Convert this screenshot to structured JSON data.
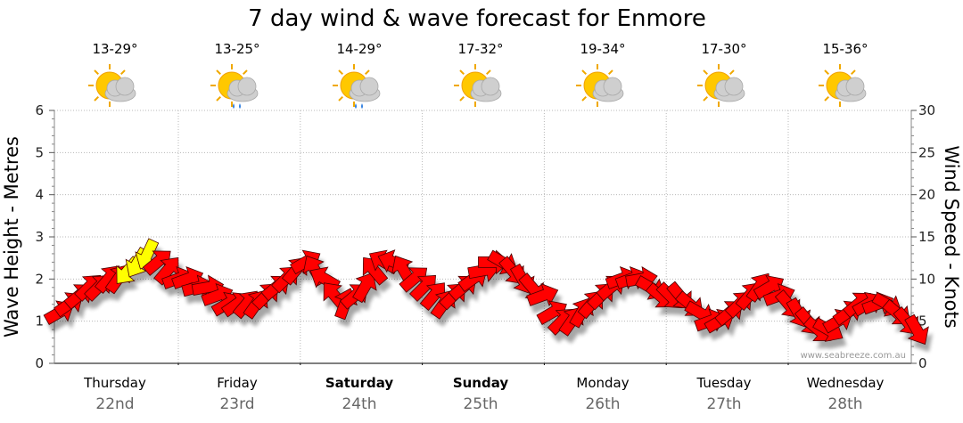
{
  "chart_data": {
    "type": "line",
    "title": "7 day wind & wave forecast for Enmore",
    "ylabel_left": "Wave Height - Metres",
    "ylabel_right": "Wind Speed - Knots",
    "ylim_left": [
      0,
      6
    ],
    "ylim_right": [
      0,
      30
    ],
    "yticks_left": [
      "0",
      "1",
      "2",
      "3",
      "4",
      "5",
      "6"
    ],
    "yticks_right": [
      "0",
      "5",
      "10",
      "15",
      "20",
      "25",
      "30"
    ],
    "credit": "www.seabreeze.com.au",
    "days": [
      {
        "name": "Thursday",
        "date": "22nd",
        "temp": "13-29°",
        "icon": "sun-cloud-icon",
        "bold": false
      },
      {
        "name": "Friday",
        "date": "23rd",
        "temp": "13-25°",
        "icon": "sun-cloud-rain-icon",
        "bold": false
      },
      {
        "name": "Saturday",
        "date": "24th",
        "temp": "14-29°",
        "icon": "sun-cloud-rain-icon",
        "bold": true
      },
      {
        "name": "Sunday",
        "date": "25th",
        "temp": "17-32°",
        "icon": "sun-cloud-icon",
        "bold": true
      },
      {
        "name": "Monday",
        "date": "26th",
        "temp": "19-34°",
        "icon": "sun-cloud-icon",
        "bold": false
      },
      {
        "name": "Tuesday",
        "date": "27th",
        "temp": "17-30°",
        "icon": "sun-cloud-icon",
        "bold": false
      },
      {
        "name": "Wednesday",
        "date": "28th",
        "temp": "15-36°",
        "icon": "sun-cloud-icon",
        "bold": false
      }
    ],
    "wind_series": {
      "name": "Wind speed (knots) with direction, per 3 hours",
      "color": "#ff0000",
      "highlight_color": "#ffff00",
      "speed": [
        6,
        7,
        8,
        9,
        9,
        10,
        10,
        11,
        12,
        13,
        12,
        11,
        10,
        10,
        9,
        9,
        8,
        7,
        7,
        7,
        7,
        8,
        9,
        10,
        11,
        12,
        11,
        10,
        8,
        7,
        8,
        9,
        11,
        12,
        12,
        11,
        10,
        9,
        8,
        7,
        8,
        9,
        10,
        11,
        12,
        12,
        11,
        10,
        9,
        8,
        6,
        5,
        5,
        6,
        7,
        8,
        9,
        10,
        10,
        10,
        9,
        8,
        8,
        8,
        7,
        6,
        5,
        5,
        6,
        7,
        8,
        9,
        9,
        8,
        7,
        6,
        5,
        4,
        4,
        5,
        6,
        7,
        7,
        7,
        7,
        6,
        5,
        4
      ],
      "direction_deg": [
        240,
        235,
        230,
        225,
        225,
        220,
        215,
        40,
        30,
        25,
        230,
        220,
        250,
        250,
        255,
        260,
        250,
        240,
        235,
        220,
        215,
        225,
        230,
        225,
        220,
        240,
        150,
        120,
        140,
        200,
        230,
        210,
        140,
        120,
        110,
        150,
        230,
        225,
        220,
        215,
        225,
        230,
        235,
        260,
        270,
        300,
        320,
        330,
        320,
        250,
        240,
        225,
        215,
        210,
        220,
        225,
        230,
        250,
        250,
        260,
        300,
        310,
        315,
        320,
        310,
        300,
        250,
        240,
        230,
        225,
        220,
        215,
        240,
        250,
        320,
        330,
        320,
        310,
        300,
        240,
        235,
        230,
        240,
        250,
        300,
        310,
        320,
        330
      ],
      "highlight_indices": [
        7,
        8,
        9
      ]
    }
  }
}
